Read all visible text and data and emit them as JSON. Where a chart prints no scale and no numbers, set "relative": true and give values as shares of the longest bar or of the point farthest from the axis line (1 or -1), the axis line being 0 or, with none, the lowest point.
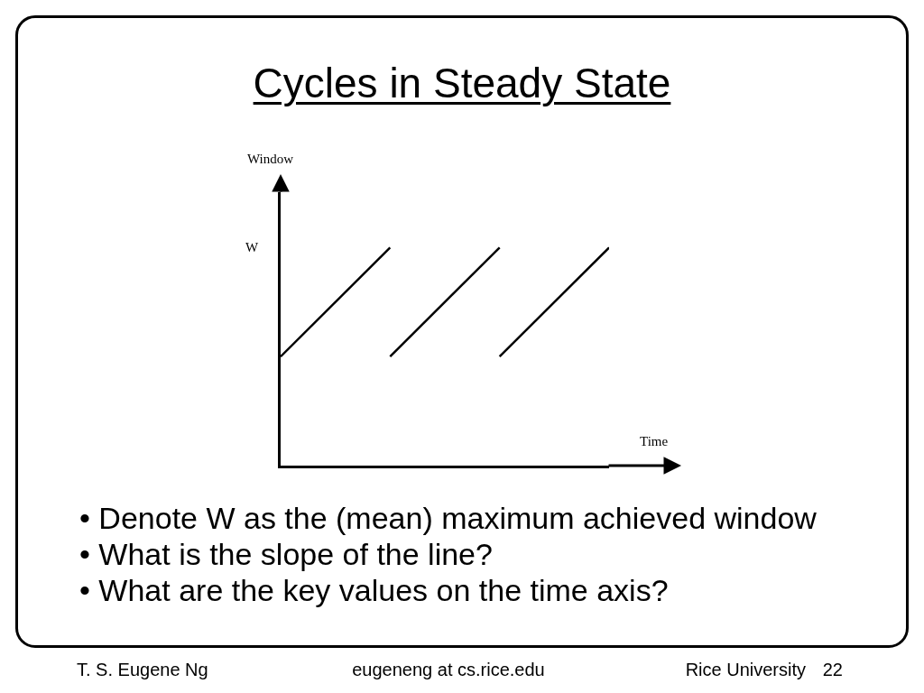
{
  "chart_data": {
    "type": "line",
    "relative": true,
    "title": "Cycles in Steady State",
    "xlabel": "Time",
    "categories": [
      null,
      null,
      null,
      null
    ],
    "series": [
      {
        "color": "#000000",
        "values": [
          0.5,
          1,
          null,
          null
        ]
      },
      {
        "color": "#000000",
        "values": [
          null,
          0.5,
          1,
          null
        ]
      },
      {
        "color": "#000000",
        "values": [
          null,
          null,
          0.5,
          1
        ]
      }
    ],
    "marker": "none",
    "line_style": "solid",
    "annotations": [
      "Window",
      "W",
      "• Denote W as the (mean) maximum achieved window",
      "• What is the slope of the line?",
      "• What are the key values on the time axis?",
      "T. S. Eugene Ng",
      "eugeneng at cs.rice.edu",
      "Rice University",
      "22"
    ]
  }
}
